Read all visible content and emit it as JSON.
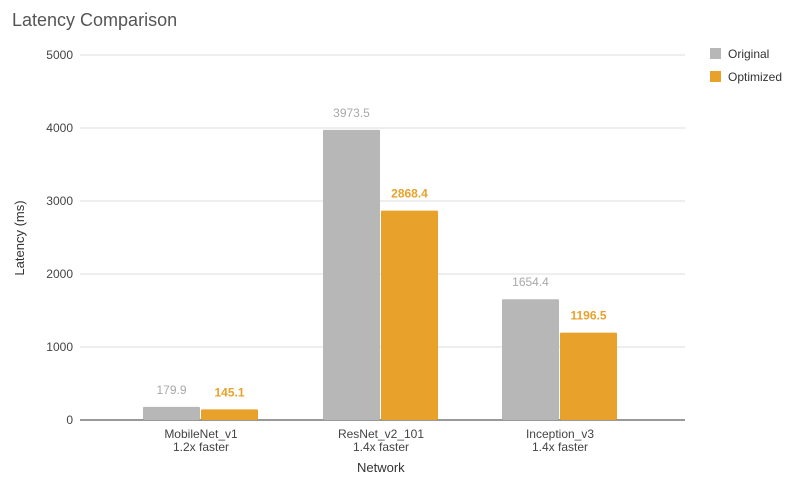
{
  "chart_data": {
    "type": "bar",
    "title": "Latency Comparison",
    "xlabel": "Network",
    "ylabel": "Latency (ms)",
    "ylim": [
      0,
      5000
    ],
    "yticks": [
      "0",
      "1000",
      "2000",
      "3000",
      "4000",
      "5000"
    ],
    "grid": true,
    "legend_position": "right",
    "categories": [
      "MobileNet_v1",
      "ResNet_v2_101",
      "Inception_v3"
    ],
    "category_notes": [
      "1.2x faster",
      "1.4x faster",
      "1.4x faster"
    ],
    "series": [
      {
        "name": "Original",
        "color": "#b7b7b7",
        "label_color": "#a8a8a8",
        "values": [
          179.9,
          3973.5,
          1654.4
        ],
        "labels": [
          "179.9",
          "3973.5",
          "1654.4"
        ]
      },
      {
        "name": "Optimized",
        "color": "#e8a22b",
        "label_color": "#e8a22b",
        "values": [
          145.1,
          2868.4,
          1196.5
        ],
        "labels": [
          "145.1",
          "2868.4",
          "1196.5"
        ]
      }
    ]
  }
}
